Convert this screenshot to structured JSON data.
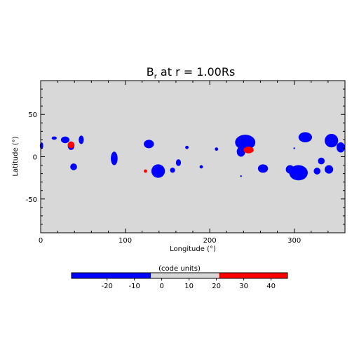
{
  "chart_data": [
    {
      "type": "heatmap",
      "title": "B",
      "title_subscript": "r",
      "title_suffix": " at r = 1.00Rs",
      "xlabel": "Longitude (°)",
      "ylabel": "Latitude (°)",
      "xlim": [
        0,
        360
      ],
      "ylim": [
        -90,
        90
      ],
      "x_ticks": [
        0,
        100,
        200,
        300
      ],
      "y_ticks": [
        -50,
        0,
        50
      ],
      "grid": false,
      "background_color": "#d8d8d8",
      "levels": [
        {
          "range": [
            -33,
            -4
          ],
          "color": "#0000ff"
        },
        {
          "range": [
            -4,
            21
          ],
          "color": "#d8d8d8"
        },
        {
          "range": [
            21,
            46
          ],
          "color": "#ff0000"
        }
      ],
      "regions": [
        {
          "polarity": "negative",
          "lon": 1,
          "lat": 13,
          "rlon": 2,
          "rlat": 4
        },
        {
          "polarity": "negative",
          "lon": 16,
          "lat": 22,
          "rlon": 3,
          "rlat": 2
        },
        {
          "polarity": "negative",
          "lon": 29,
          "lat": 20,
          "rlon": 5,
          "rlat": 4
        },
        {
          "polarity": "negative",
          "lon": 36,
          "lat": 13,
          "rlon": 4,
          "rlat": 5
        },
        {
          "polarity": "negative",
          "lon": 48,
          "lat": 20,
          "rlon": 3,
          "rlat": 5
        },
        {
          "polarity": "negative",
          "lon": 39,
          "lat": -12,
          "rlon": 4,
          "rlat": 4
        },
        {
          "polarity": "negative",
          "lon": 87,
          "lat": -2,
          "rlon": 4,
          "rlat": 8
        },
        {
          "polarity": "negative",
          "lon": 128,
          "lat": 15,
          "rlon": 6,
          "rlat": 5
        },
        {
          "polarity": "negative",
          "lon": 139,
          "lat": -17,
          "rlon": 8,
          "rlat": 8
        },
        {
          "polarity": "negative",
          "lon": 163,
          "lat": -7,
          "rlon": 3,
          "rlat": 4
        },
        {
          "polarity": "negative",
          "lon": 156,
          "lat": -16,
          "rlon": 3,
          "rlat": 3
        },
        {
          "polarity": "negative",
          "lon": 173,
          "lat": 11,
          "rlon": 2,
          "rlat": 2
        },
        {
          "polarity": "negative",
          "lon": 190,
          "lat": -12,
          "rlon": 2,
          "rlat": 2
        },
        {
          "polarity": "negative",
          "lon": 208,
          "lat": 9,
          "rlon": 2,
          "rlat": 2
        },
        {
          "polarity": "negative",
          "lon": 242,
          "lat": 17,
          "rlon": 12,
          "rlat": 9
        },
        {
          "polarity": "negative",
          "lon": 237,
          "lat": 6,
          "rlon": 5,
          "rlat": 6
        },
        {
          "polarity": "negative",
          "lon": 263,
          "lat": -14,
          "rlon": 6,
          "rlat": 5
        },
        {
          "polarity": "negative",
          "lon": 237,
          "lat": -23,
          "rlon": 1,
          "rlat": 1
        },
        {
          "polarity": "negative",
          "lon": 300,
          "lat": 10,
          "rlon": 1,
          "rlat": 1
        },
        {
          "polarity": "negative",
          "lon": 313,
          "lat": 23,
          "rlon": 8,
          "rlat": 6
        },
        {
          "polarity": "negative",
          "lon": 344,
          "lat": 19,
          "rlon": 8,
          "rlat": 8
        },
        {
          "polarity": "negative",
          "lon": 355,
          "lat": 11,
          "rlon": 5,
          "rlat": 6
        },
        {
          "polarity": "negative",
          "lon": 305,
          "lat": -19,
          "rlon": 11,
          "rlat": 9
        },
        {
          "polarity": "negative",
          "lon": 295,
          "lat": -15,
          "rlon": 5,
          "rlat": 5
        },
        {
          "polarity": "negative",
          "lon": 327,
          "lat": -17,
          "rlon": 4,
          "rlat": 4
        },
        {
          "polarity": "negative",
          "lon": 341,
          "lat": -15,
          "rlon": 5,
          "rlat": 5
        },
        {
          "polarity": "negative",
          "lon": 332,
          "lat": -5,
          "rlon": 4,
          "rlat": 4
        },
        {
          "polarity": "positive",
          "lon": 36,
          "lat": 14,
          "rlon": 4,
          "rlat": 4
        },
        {
          "polarity": "positive",
          "lon": 246,
          "lat": 8,
          "rlon": 6,
          "rlat": 4
        },
        {
          "polarity": "positive",
          "lon": 124,
          "lat": -17,
          "rlon": 2,
          "rlat": 2
        }
      ]
    },
    {
      "type": "colorbar",
      "title": "(code units)",
      "range": [
        -33,
        46
      ],
      "ticks": [
        -20,
        -10,
        0,
        10,
        20,
        30,
        40
      ]
    }
  ]
}
